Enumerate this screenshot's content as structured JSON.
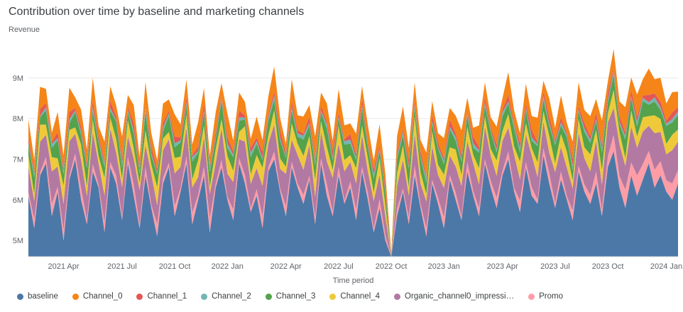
{
  "title": "Contribution over time by baseline and marketing channels",
  "chart_data": {
    "type": "area",
    "stacked": true,
    "title": "Contribution over time by baseline and marketing channels",
    "ylabel": "Revenue",
    "xlabel": "Time period",
    "unit": "M",
    "y_domain": [
      4.6,
      9.8
    ],
    "y_ticks": [
      {
        "v": 5,
        "label": "5M"
      },
      {
        "v": 6,
        "label": "6M"
      },
      {
        "v": 7,
        "label": "7M"
      },
      {
        "v": 8,
        "label": "8M"
      },
      {
        "v": 9,
        "label": "9M"
      }
    ],
    "n": 112,
    "x_ticks": [
      {
        "label": "2021 Apr",
        "i": 6
      },
      {
        "label": "2021 Jul",
        "i": 16
      },
      {
        "label": "2021 Oct",
        "i": 25
      },
      {
        "label": "2022 Jan",
        "i": 34
      },
      {
        "label": "2022 Apr",
        "i": 44
      },
      {
        "label": "2022 Jul",
        "i": 53
      },
      {
        "label": "2022 Oct",
        "i": 62
      },
      {
        "label": "2023 Jan",
        "i": 71
      },
      {
        "label": "2023 Apr",
        "i": 81
      },
      {
        "label": "2023 Jul",
        "i": 90
      },
      {
        "label": "2023 Oct",
        "i": 99
      },
      {
        "label": "2024 Jan",
        "i": 109
      }
    ],
    "stack_order": [
      "baseline",
      "Promo",
      "Organic_channel0_impressions",
      "Channel_4",
      "Channel_3",
      "Channel_2",
      "Channel_1",
      "Channel_0"
    ],
    "grid_color": "#e6e6e6",
    "axis_color": "#dadce0",
    "series": [
      {
        "name": "baseline",
        "color": "#4c78a8",
        "values": [
          6.1,
          5.3,
          6.6,
          6.9,
          5.6,
          6.2,
          5.0,
          6.5,
          7.0,
          6.0,
          5.4,
          6.7,
          6.3,
          5.2,
          6.8,
          6.4,
          5.5,
          6.9,
          6.1,
          5.3,
          6.6,
          5.8,
          5.1,
          6.4,
          6.8,
          5.6,
          6.2,
          6.9,
          5.4,
          6.0,
          6.6,
          5.2,
          6.3,
          6.8,
          6.0,
          5.5,
          6.9,
          6.4,
          5.7,
          6.1,
          5.3,
          6.7,
          7.0,
          6.2,
          5.6,
          6.8,
          6.3,
          5.9,
          6.5,
          5.4,
          6.9,
          6.1,
          5.6,
          6.6,
          5.9,
          6.3,
          5.5,
          6.7,
          6.0,
          5.2,
          5.8,
          5.0,
          3.9,
          5.6,
          6.2,
          5.4,
          6.6,
          5.8,
          5.1,
          6.4,
          5.9,
          5.3,
          6.5,
          6.0,
          5.5,
          6.7,
          6.1,
          5.6,
          6.9,
          6.3,
          5.8,
          6.6,
          7.0,
          6.2,
          5.7,
          6.8,
          6.1,
          5.9,
          7.1,
          6.4,
          5.8,
          6.5,
          6.0,
          5.5,
          6.7,
          6.2,
          5.9,
          6.4,
          5.6,
          6.8,
          7.2,
          6.3,
          5.8,
          6.6,
          6.1,
          6.5,
          6.9,
          6.3,
          6.6,
          6.2,
          6.0,
          6.4
        ]
      },
      {
        "name": "Channel_0",
        "color": "#f58518",
        "values": [
          0.45,
          0.28,
          0.55,
          0.35,
          0.22,
          0.5,
          0.3,
          0.6,
          0.26,
          0.42,
          0.33,
          0.56,
          0.24,
          0.48,
          0.36,
          0.28,
          0.52,
          0.3,
          0.44,
          0.25,
          0.58,
          0.34,
          0.22,
          0.48,
          0.28,
          0.55,
          0.32,
          0.42,
          0.26,
          0.6,
          0.36,
          0.24,
          0.5,
          0.3,
          0.58,
          0.26,
          0.44,
          0.34,
          0.22,
          0.52,
          0.28,
          0.46,
          0.6,
          0.32,
          0.24,
          0.54,
          0.36,
          0.42,
          0.28,
          0.55,
          0.32,
          0.46,
          0.24,
          0.58,
          0.34,
          0.26,
          0.5,
          0.3,
          0.44,
          0.22,
          0.52,
          0.28,
          0.15,
          0.38,
          0.55,
          0.3,
          0.46,
          0.26,
          0.58,
          0.34,
          0.24,
          0.5,
          0.28,
          0.44,
          0.6,
          0.32,
          0.22,
          0.52,
          0.36,
          0.26,
          0.44,
          0.28,
          0.56,
          0.32,
          0.24,
          0.5,
          0.34,
          0.6,
          0.26,
          0.46,
          0.3,
          0.54,
          0.24,
          0.42,
          0.58,
          0.32,
          0.5,
          0.34,
          0.6,
          0.28,
          0.46,
          0.36,
          0.62,
          0.3,
          0.55,
          0.4,
          0.65,
          0.35,
          0.58,
          0.42,
          0.5,
          0.38
        ]
      },
      {
        "name": "Channel_1",
        "color": "#e45756",
        "values": [
          0.12,
          0.07,
          0.16,
          0.1,
          0.05,
          0.14,
          0.09,
          0.18,
          0.06,
          0.12,
          0.08,
          0.15,
          0.11,
          0.06,
          0.17,
          0.09,
          0.13,
          0.07,
          0.18,
          0.1,
          0.05,
          0.15,
          0.09,
          0.12,
          0.06,
          0.16,
          0.08,
          0.14,
          0.05,
          0.11,
          0.18,
          0.07,
          0.12,
          0.06,
          0.15,
          0.09,
          0.17,
          0.05,
          0.13,
          0.08,
          0.16,
          0.06,
          0.11,
          0.18,
          0.07,
          0.14,
          0.09,
          0.05,
          0.16,
          0.08,
          0.12,
          0.06,
          0.18,
          0.1,
          0.05,
          0.14,
          0.09,
          0.16,
          0.06,
          0.12,
          0.08,
          0.15,
          0.04,
          0.1,
          0.07,
          0.17,
          0.09,
          0.13,
          0.05,
          0.15,
          0.1,
          0.06,
          0.18,
          0.08,
          0.12,
          0.05,
          0.16,
          0.09,
          0.14,
          0.06,
          0.12,
          0.07,
          0.16,
          0.05,
          0.13,
          0.09,
          0.18,
          0.06,
          0.11,
          0.15,
          0.07,
          0.12,
          0.05,
          0.17,
          0.09,
          0.13,
          0.08,
          0.15,
          0.1,
          0.18,
          0.07,
          0.14,
          0.09,
          0.16,
          0.12,
          0.06,
          0.18,
          0.1,
          0.14,
          0.08,
          0.16,
          0.11
        ]
      },
      {
        "name": "Channel_2",
        "color": "#72b7b2",
        "values": [
          0.06,
          0.09,
          0.04,
          0.08,
          0.11,
          0.05,
          0.07,
          0.1,
          0.04,
          0.08,
          0.06,
          0.11,
          0.05,
          0.09,
          0.07,
          0.04,
          0.1,
          0.06,
          0.08,
          0.05,
          0.11,
          0.07,
          0.04,
          0.09,
          0.06,
          0.1,
          0.05,
          0.08,
          0.11,
          0.04,
          0.07,
          0.09,
          0.05,
          0.08,
          0.11,
          0.06,
          0.09,
          0.04,
          0.1,
          0.07,
          0.05,
          0.08,
          0.11,
          0.06,
          0.04,
          0.09,
          0.07,
          0.1,
          0.06,
          0.09,
          0.05,
          0.11,
          0.07,
          0.04,
          0.08,
          0.1,
          0.06,
          0.09,
          0.05,
          0.11,
          0.07,
          0.04,
          0.02,
          0.08,
          0.1,
          0.05,
          0.08,
          0.06,
          0.11,
          0.07,
          0.04,
          0.09,
          0.06,
          0.1,
          0.05,
          0.08,
          0.11,
          0.06,
          0.09,
          0.04,
          0.07,
          0.1,
          0.05,
          0.08,
          0.11,
          0.06,
          0.09,
          0.04,
          0.1,
          0.07,
          0.05,
          0.08,
          0.06,
          0.11,
          0.04,
          0.09,
          0.08,
          0.05,
          0.1,
          0.07,
          0.11,
          0.06,
          0.09,
          0.05,
          0.12,
          0.08,
          0.06,
          0.1,
          0.07,
          0.05,
          0.09,
          0.08
        ]
      },
      {
        "name": "Channel_3",
        "color": "#54a24b",
        "values": [
          0.25,
          0.4,
          0.18,
          0.35,
          0.22,
          0.45,
          0.28,
          0.16,
          0.38,
          0.24,
          0.44,
          0.2,
          0.33,
          0.26,
          0.17,
          0.42,
          0.28,
          0.19,
          0.36,
          0.24,
          0.45,
          0.21,
          0.32,
          0.17,
          0.4,
          0.26,
          0.35,
          0.22,
          0.44,
          0.18,
          0.3,
          0.38,
          0.24,
          0.45,
          0.2,
          0.34,
          0.27,
          0.17,
          0.42,
          0.28,
          0.19,
          0.36,
          0.25,
          0.44,
          0.22,
          0.32,
          0.18,
          0.4,
          0.26,
          0.35,
          0.21,
          0.44,
          0.24,
          0.18,
          0.38,
          0.28,
          0.2,
          0.42,
          0.26,
          0.34,
          0.17,
          0.3,
          0.12,
          0.36,
          0.24,
          0.44,
          0.2,
          0.34,
          0.28,
          0.18,
          0.4,
          0.25,
          0.45,
          0.21,
          0.33,
          0.26,
          0.17,
          0.38,
          0.24,
          0.42,
          0.2,
          0.36,
          0.26,
          0.44,
          0.22,
          0.32,
          0.18,
          0.4,
          0.28,
          0.24,
          0.45,
          0.21,
          0.35,
          0.26,
          0.19,
          0.38,
          0.28,
          0.22,
          0.42,
          0.26,
          0.36,
          0.2,
          0.45,
          0.3,
          0.24,
          0.4,
          0.28,
          0.34,
          0.22,
          0.44,
          0.3,
          0.36
        ]
      },
      {
        "name": "Channel_4",
        "color": "#eeca3b",
        "values": [
          0.3,
          0.18,
          0.42,
          0.25,
          0.35,
          0.2,
          0.45,
          0.28,
          0.16,
          0.38,
          0.24,
          0.32,
          0.19,
          0.44,
          0.27,
          0.34,
          0.21,
          0.4,
          0.26,
          0.17,
          0.36,
          0.23,
          0.45,
          0.29,
          0.18,
          0.38,
          0.25,
          0.33,
          0.2,
          0.42,
          0.28,
          0.16,
          0.35,
          0.22,
          0.44,
          0.27,
          0.18,
          0.38,
          0.24,
          0.32,
          0.45,
          0.2,
          0.36,
          0.26,
          0.17,
          0.4,
          0.28,
          0.34,
          0.22,
          0.42,
          0.26,
          0.36,
          0.19,
          0.44,
          0.28,
          0.17,
          0.38,
          0.24,
          0.33,
          0.21,
          0.4,
          0.27,
          0.1,
          0.3,
          0.36,
          0.22,
          0.44,
          0.28,
          0.18,
          0.38,
          0.25,
          0.33,
          0.2,
          0.42,
          0.27,
          0.35,
          0.21,
          0.4,
          0.26,
          0.17,
          0.38,
          0.24,
          0.34,
          0.2,
          0.44,
          0.28,
          0.18,
          0.36,
          0.25,
          0.42,
          0.22,
          0.32,
          0.4,
          0.19,
          0.35,
          0.27,
          0.42,
          0.26,
          0.36,
          0.22,
          0.45,
          0.3,
          0.2,
          0.4,
          0.28,
          0.35,
          0.24,
          0.44,
          0.32,
          0.26,
          0.38,
          0.3
        ]
      },
      {
        "name": "Organic_channel0_impressions",
        "display": "Organic_channel0_impressi…",
        "color": "#b279a2",
        "values": [
          0.6,
          0.45,
          0.75,
          0.55,
          0.8,
          0.5,
          0.65,
          0.85,
          0.48,
          0.7,
          0.58,
          0.78,
          0.52,
          0.66,
          0.82,
          0.56,
          0.72,
          0.5,
          0.64,
          0.84,
          0.54,
          0.76,
          0.46,
          0.68,
          0.58,
          0.8,
          0.52,
          0.7,
          0.62,
          0.44,
          0.74,
          0.6,
          0.5,
          0.78,
          0.56,
          0.68,
          0.46,
          0.82,
          0.6,
          0.52,
          0.74,
          0.58,
          0.66,
          0.48,
          0.8,
          0.54,
          0.7,
          0.62,
          0.76,
          0.5,
          0.66,
          0.56,
          0.84,
          0.58,
          0.72,
          0.48,
          0.64,
          0.78,
          0.52,
          0.68,
          0.6,
          0.46,
          0.3,
          0.56,
          0.7,
          0.54,
          0.78,
          0.5,
          0.66,
          0.82,
          0.56,
          0.72,
          0.48,
          0.64,
          0.76,
          0.52,
          0.68,
          0.58,
          0.8,
          0.62,
          0.54,
          0.74,
          0.58,
          0.82,
          0.52,
          0.68,
          0.78,
          0.56,
          0.66,
          0.5,
          0.76,
          0.6,
          0.7,
          0.54,
          0.8,
          0.64,
          0.58,
          0.76,
          0.62,
          0.84,
          0.66,
          0.78,
          0.58,
          0.88,
          0.68,
          0.8,
          0.62,
          0.9,
          0.72,
          0.64,
          0.82,
          0.7
        ]
      },
      {
        "name": "Promo",
        "color": "#ff9da6",
        "values": [
          0.1,
          0.22,
          0.08,
          0.15,
          0.3,
          0.12,
          0.25,
          0.09,
          0.14,
          0.28,
          0.11,
          0.18,
          0.07,
          0.24,
          0.13,
          0.2,
          0.09,
          0.16,
          0.27,
          0.1,
          0.21,
          0.08,
          0.3,
          0.14,
          0.11,
          0.25,
          0.09,
          0.17,
          0.28,
          0.12,
          0.22,
          0.35,
          0.1,
          0.18,
          0.08,
          0.26,
          0.13,
          0.21,
          0.09,
          0.16,
          0.3,
          0.11,
          0.19,
          0.08,
          0.24,
          0.14,
          0.1,
          0.22,
          0.09,
          0.17,
          0.12,
          0.28,
          0.1,
          0.2,
          0.08,
          0.15,
          0.26,
          0.11,
          0.18,
          0.09,
          0.22,
          0.13,
          0.06,
          0.19,
          0.08,
          0.16,
          0.24,
          0.1,
          0.2,
          0.09,
          0.15,
          0.27,
          0.11,
          0.18,
          0.08,
          0.23,
          0.12,
          0.2,
          0.1,
          0.16,
          0.25,
          0.11,
          0.19,
          0.09,
          0.28,
          0.13,
          0.21,
          0.1,
          0.17,
          0.26,
          0.12,
          0.2,
          0.09,
          0.24,
          0.14,
          0.18,
          0.22,
          0.3,
          0.15,
          0.26,
          0.4,
          0.28,
          0.45,
          0.32,
          0.5,
          0.38,
          0.3,
          0.44,
          0.35,
          0.28,
          0.4,
          0.33
        ]
      }
    ]
  }
}
